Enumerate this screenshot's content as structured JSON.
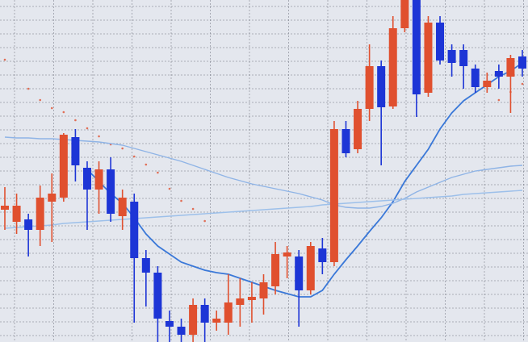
{
  "chart_data": {
    "type": "candlestick",
    "up_color": "#e0502f",
    "down_color": "#1d35d6",
    "open": [
      164,
      149,
      152,
      139,
      174,
      179,
      254,
      216,
      189,
      214,
      156,
      174,
      104,
      86,
      26,
      19,
      9,
      46,
      24,
      24,
      46,
      52,
      54,
      69,
      106,
      106,
      64,
      116,
      99,
      264,
      239,
      289,
      342,
      292,
      389,
      424,
      309,
      396,
      362,
      362,
      339,
      316,
      336,
      329,
      354
    ],
    "close": [
      169,
      169,
      139,
      179,
      184,
      257,
      219,
      189,
      214,
      159,
      179,
      104,
      86,
      29,
      19,
      9,
      46,
      24,
      29,
      49,
      54,
      56,
      74,
      109,
      111,
      64,
      119,
      99,
      264,
      234,
      289,
      342,
      291,
      389,
      424,
      307,
      396,
      349,
      346,
      342,
      316,
      324,
      329,
      352,
      339
    ],
    "high": [
      192,
      184,
      159,
      194,
      209,
      259,
      264,
      224,
      224,
      229,
      189,
      184,
      114,
      94,
      39,
      29,
      54,
      54,
      39,
      84,
      79,
      74,
      84,
      124,
      119,
      114,
      124,
      129,
      274,
      274,
      299,
      369,
      349,
      404,
      424,
      424,
      404,
      404,
      369,
      369,
      344,
      334,
      344,
      356,
      362
    ],
    "low": [
      139,
      134,
      106,
      119,
      124,
      174,
      199,
      139,
      159,
      149,
      139,
      24,
      44,
      0,
      0,
      0,
      0,
      0,
      14,
      9,
      19,
      24,
      34,
      59,
      79,
      19,
      59,
      84,
      94,
      229,
      234,
      274,
      219,
      289,
      384,
      279,
      304,
      344,
      329,
      314,
      309,
      309,
      314,
      284,
      329
    ],
    "ylim": [
      0,
      424
    ],
    "lines": [
      {
        "color": "#3a78d8",
        "values": [
          null,
          null,
          null,
          null,
          null,
          null,
          null,
          214,
          199,
          184,
          172,
          154,
          134,
          119,
          109,
          99,
          94,
          89,
          86,
          84,
          79,
          74,
          69,
          64,
          60,
          56,
          56,
          64,
          84,
          102,
          119,
          137,
          154,
          174,
          199,
          219,
          239,
          264,
          284,
          299,
          309,
          319,
          329,
          336,
          346
        ]
      },
      {
        "color": "#8fb4e6",
        "values": [
          254,
          253,
          253,
          252,
          252,
          251,
          250,
          249,
          248,
          246,
          244,
          240,
          236,
          232,
          228,
          224,
          219,
          214,
          209,
          204,
          200,
          196,
          193,
          190,
          187,
          184,
          180,
          176,
          170,
          167,
          166,
          166,
          168,
          172,
          178,
          186,
          192,
          198,
          204,
          208,
          212,
          214,
          216,
          218,
          219
        ]
      },
      {
        "color": "#9dc0ea",
        "values": [
          141,
          142,
          143,
          144,
          145,
          147,
          148,
          149,
          150,
          151,
          152,
          153,
          154,
          155,
          156,
          157,
          158,
          159,
          160,
          161,
          162,
          163,
          164,
          165,
          166,
          167,
          168,
          170,
          171,
          172,
          173,
          174,
          175,
          176,
          177,
          178,
          179,
          180,
          181,
          183,
          184,
          185,
          186,
          187,
          188
        ]
      }
    ],
    "sar_color": "#e0502f",
    "sar": [
      350,
      null,
      314,
      300,
      290,
      285,
      275,
      265,
      255,
      245,
      240,
      230,
      220,
      210,
      190,
      175,
      165,
      150,
      null,
      null,
      null,
      null,
      null,
      null,
      null,
      null,
      null,
      null,
      null,
      null,
      null,
      null,
      null,
      null,
      null,
      null,
      null,
      null,
      null,
      null,
      null,
      null,
      300,
      310,
      320
    ]
  }
}
